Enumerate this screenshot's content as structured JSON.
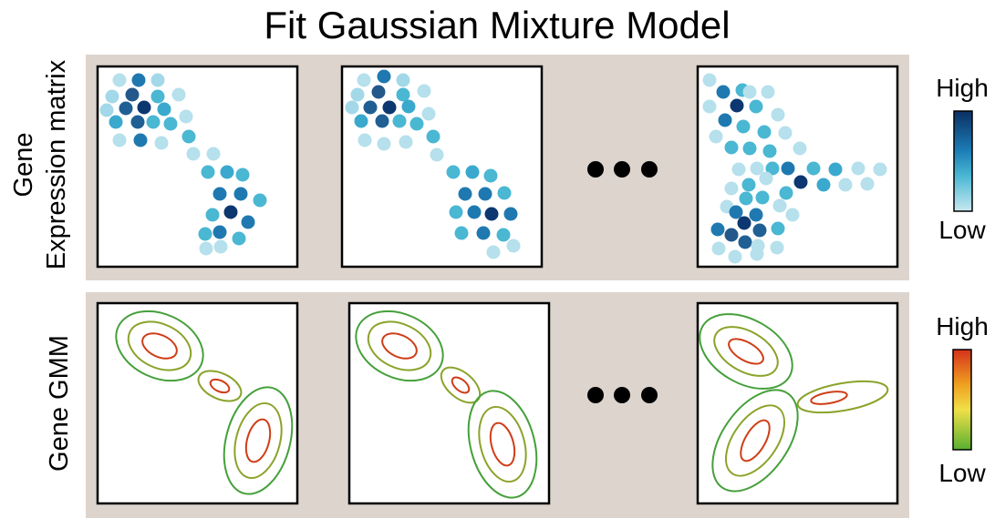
{
  "title": "Fit Gaussian Mixture Model",
  "rows": {
    "expression": {
      "label_line1": "Gene",
      "label_line2": "Expression matrix"
    },
    "gmm": {
      "label": "Gene GMM"
    }
  },
  "legends": {
    "expression": {
      "high": "High",
      "low": "Low",
      "colors": [
        "#0b2f63",
        "#1c7eb6",
        "#4bb8d4",
        "#c8e8f0"
      ]
    },
    "gmm": {
      "high": "High",
      "low": "Low",
      "colors": [
        "#d6321c",
        "#f0a020",
        "#f0e048",
        "#58b030"
      ]
    }
  },
  "contour_colors": {
    "outer": "#45a03a",
    "middle": "#8aa32a",
    "inner": "#cf3d17"
  },
  "panel_background": "#dcd4cd",
  "ellipsis_glyph": "●●●",
  "icon_names": [
    "gene-expression-scatter-icon",
    "gmm-contour-icon",
    "ellipsis-dots-icon",
    "down-arrow-connector-icon"
  ]
}
